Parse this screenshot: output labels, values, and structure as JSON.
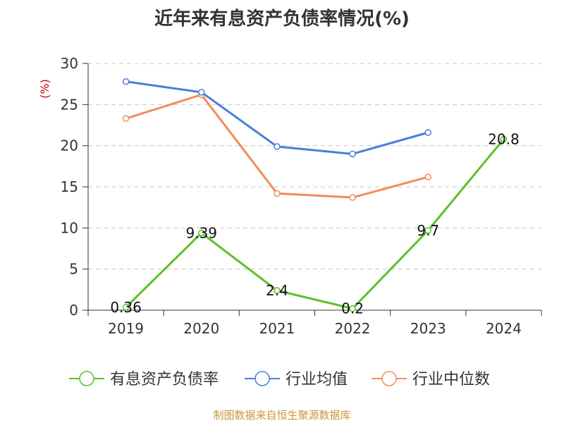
{
  "chart_data": {
    "type": "line",
    "title": "近年来有息资产负债率情况(%)",
    "ylabel": "(%)",
    "xlabel": "",
    "categories": [
      "2019",
      "2020",
      "2021",
      "2022",
      "2023",
      "2024"
    ],
    "ylim": [
      0,
      30
    ],
    "yticks": [
      0,
      5,
      10,
      15,
      20,
      25,
      30
    ],
    "grid": "dashed-horizontal",
    "legend_position": "bottom",
    "series": [
      {
        "name": "有息资产负债率",
        "color": "#5ac12a",
        "values": [
          0.36,
          9.39,
          2.4,
          0.2,
          9.7,
          20.8
        ],
        "labels": [
          "0.36",
          "9.39",
          "2.4",
          "0.2",
          "9.7",
          "20.8"
        ]
      },
      {
        "name": "行业均值",
        "color": "#4a7fd9",
        "values": [
          27.8,
          26.5,
          19.9,
          19.0,
          21.6,
          null
        ]
      },
      {
        "name": "行业中位数",
        "color": "#f38c5a",
        "values": [
          23.3,
          26.2,
          14.2,
          13.7,
          16.2,
          null
        ]
      }
    ],
    "source": "制图数据来自恒生聚源数据库"
  }
}
